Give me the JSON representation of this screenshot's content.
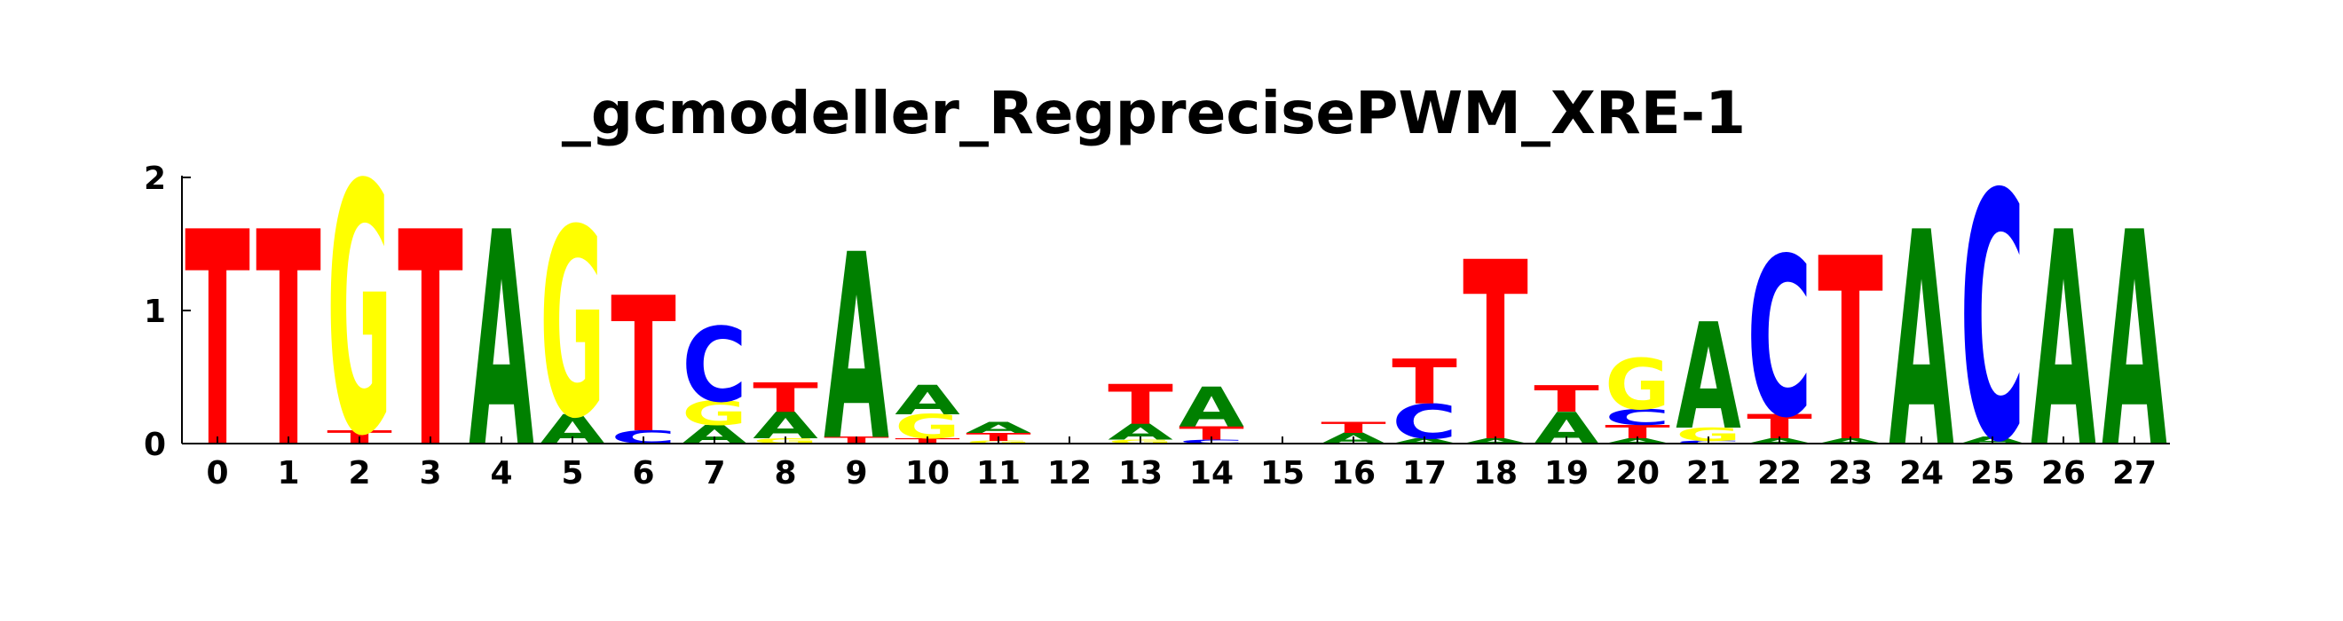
{
  "chart_data": {
    "type": "sequence-logo",
    "title": "_gcmodeller_RegprecisePWM_XRE-1",
    "xlabel": "",
    "ylabel": "",
    "ylim": [
      0,
      2
    ],
    "y_ticks": [
      "0",
      "1",
      "2"
    ],
    "x_ticks": [
      "0",
      "1",
      "2",
      "3",
      "4",
      "5",
      "6",
      "7",
      "8",
      "9",
      "10",
      "11",
      "12",
      "13",
      "14",
      "15",
      "16",
      "17",
      "18",
      "19",
      "20",
      "21",
      "22",
      "23",
      "24",
      "25",
      "26",
      "27"
    ],
    "colors": {
      "A": "#008000",
      "C": "#0000ff",
      "G": "#ffff00",
      "T": "#ff0000"
    },
    "grid": false,
    "positions": [
      [
        {
          "l": "T",
          "h": 1.62
        }
      ],
      [
        {
          "l": "T",
          "h": 1.62
        }
      ],
      [
        {
          "l": "T",
          "h": 0.1
        },
        {
          "l": "G",
          "h": 1.88
        }
      ],
      [
        {
          "l": "T",
          "h": 1.62
        }
      ],
      [
        {
          "l": "A",
          "h": 1.62
        }
      ],
      [
        {
          "l": "A",
          "h": 0.22
        },
        {
          "l": "G",
          "h": 1.42
        }
      ],
      [
        {
          "l": "C",
          "h": 0.1
        },
        {
          "l": "T",
          "h": 1.02
        }
      ],
      [
        {
          "l": "A",
          "h": 0.14
        },
        {
          "l": "G",
          "h": 0.18
        },
        {
          "l": "C",
          "h": 0.56
        }
      ],
      [
        {
          "l": "G",
          "h": 0.04
        },
        {
          "l": "A",
          "h": 0.2
        },
        {
          "l": "T",
          "h": 0.22
        }
      ],
      [
        {
          "l": "T",
          "h": 0.05
        },
        {
          "l": "A",
          "h": 1.4
        }
      ],
      [
        {
          "l": "T",
          "h": 0.04
        },
        {
          "l": "G",
          "h": 0.18
        },
        {
          "l": "A",
          "h": 0.22
        }
      ],
      [
        {
          "l": "G",
          "h": 0.02
        },
        {
          "l": "T",
          "h": 0.06
        },
        {
          "l": "A",
          "h": 0.08
        }
      ],
      [],
      [
        {
          "l": "G",
          "h": 0.03
        },
        {
          "l": "A",
          "h": 0.12
        },
        {
          "l": "T",
          "h": 0.3
        }
      ],
      [
        {
          "l": "C",
          "h": 0.03
        },
        {
          "l": "T",
          "h": 0.1
        },
        {
          "l": "A",
          "h": 0.3
        }
      ],
      [],
      [
        {
          "l": "A",
          "h": 0.08
        },
        {
          "l": "T",
          "h": 0.08
        }
      ],
      [
        {
          "l": "A",
          "h": 0.04
        },
        {
          "l": "C",
          "h": 0.26
        },
        {
          "l": "T",
          "h": 0.34
        }
      ],
      [
        {
          "l": "A",
          "h": 0.04
        },
        {
          "l": "T",
          "h": 1.35
        }
      ],
      [
        {
          "l": "A",
          "h": 0.24
        },
        {
          "l": "T",
          "h": 0.2
        }
      ],
      [
        {
          "l": "A",
          "h": 0.04
        },
        {
          "l": "T",
          "h": 0.1
        },
        {
          "l": "C",
          "h": 0.12
        },
        {
          "l": "G",
          "h": 0.38
        }
      ],
      [
        {
          "l": "C",
          "h": 0.02
        },
        {
          "l": "G",
          "h": 0.1
        },
        {
          "l": "A",
          "h": 0.8
        }
      ],
      [
        {
          "l": "A",
          "h": 0.04
        },
        {
          "l": "T",
          "h": 0.18
        },
        {
          "l": "C",
          "h": 1.2
        }
      ],
      [
        {
          "l": "A",
          "h": 0.04
        },
        {
          "l": "T",
          "h": 1.38
        }
      ],
      [
        {
          "l": "A",
          "h": 1.62
        }
      ],
      [
        {
          "l": "A",
          "h": 0.05
        },
        {
          "l": "C",
          "h": 1.86
        }
      ],
      [
        {
          "l": "A",
          "h": 1.62
        }
      ],
      [
        {
          "l": "A",
          "h": 1.62
        }
      ]
    ]
  }
}
